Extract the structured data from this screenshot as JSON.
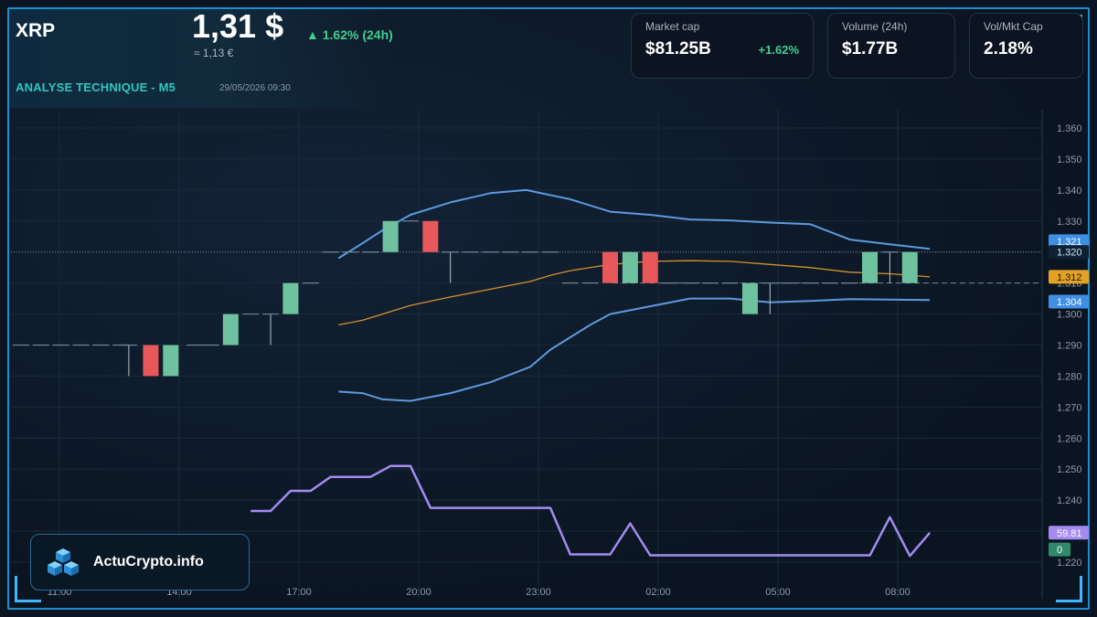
{
  "header": {
    "ticker": "XRP",
    "price": "1,31 $",
    "change": "▲ 1.62% (24h)",
    "price_eur": "≈ 1,13 €",
    "section_title": "ANALYSE TECHNIQUE - M5",
    "timestamp": "29/05/2026 09:30"
  },
  "stats": {
    "market_cap": {
      "label": "Market cap",
      "value": "$81.25B",
      "change": "+1.62%"
    },
    "volume": {
      "label": "Volume (24h)",
      "value": "$1.77B"
    },
    "vol_mkt_cap": {
      "label": "Vol/Mkt Cap",
      "value": "2.18%"
    }
  },
  "brand": {
    "name": "ActuCrypto.info"
  },
  "colors": {
    "up": "#6fc2a0",
    "down": "#e8575a",
    "band": "#5b9ae0",
    "ma": "#d4922a",
    "rsi": "#a38bf0",
    "accent": "#1c8fcf",
    "teal": "#2ec7c2"
  },
  "chart_data": {
    "type": "candlestick",
    "x_ticks": [
      "11:00",
      "14:00",
      "17:00",
      "20:00",
      "23:00",
      "02:00",
      "05:00",
      "08:00"
    ],
    "y_ticks": [
      "1.220",
      "1.230",
      "1.240",
      "1.250",
      "1.260",
      "1.270",
      "1.280",
      "1.290",
      "1.300",
      "1.310",
      "1.320",
      "1.330",
      "1.340",
      "1.350",
      "1.360"
    ],
    "ylim": [
      1.216,
      1.364
    ],
    "candles": [
      {
        "t": 0.25,
        "o": 1.29,
        "h": 1.29,
        "l": 1.29,
        "c": 1.29
      },
      {
        "t": 0.75,
        "o": 1.29,
        "h": 1.29,
        "l": 1.29,
        "c": 1.29
      },
      {
        "t": 1.25,
        "o": 1.29,
        "h": 1.29,
        "l": 1.29,
        "c": 1.29
      },
      {
        "t": 1.75,
        "o": 1.29,
        "h": 1.29,
        "l": 1.29,
        "c": 1.29
      },
      {
        "t": 2.25,
        "o": 1.29,
        "h": 1.29,
        "l": 1.29,
        "c": 1.29
      },
      {
        "t": 2.75,
        "o": 1.29,
        "h": 1.29,
        "l": 1.29,
        "c": 1.29
      },
      {
        "t": 2.95,
        "o": 1.29,
        "h": 1.29,
        "l": 1.28,
        "c": 1.29
      },
      {
        "t": 3.5,
        "o": 1.29,
        "h": 1.29,
        "l": 1.28,
        "c": 1.28
      },
      {
        "t": 4.0,
        "o": 1.28,
        "h": 1.29,
        "l": 1.28,
        "c": 1.29
      },
      {
        "t": 4.6,
        "o": 1.29,
        "h": 1.29,
        "l": 1.29,
        "c": 1.29
      },
      {
        "t": 5.0,
        "o": 1.29,
        "h": 1.29,
        "l": 1.29,
        "c": 1.29
      },
      {
        "t": 5.5,
        "o": 1.29,
        "h": 1.3,
        "l": 1.29,
        "c": 1.3
      },
      {
        "t": 6.0,
        "o": 1.3,
        "h": 1.3,
        "l": 1.3,
        "c": 1.3
      },
      {
        "t": 6.5,
        "o": 1.3,
        "h": 1.3,
        "l": 1.29,
        "c": 1.3
      },
      {
        "t": 7.0,
        "o": 1.3,
        "h": 1.31,
        "l": 1.3,
        "c": 1.31
      },
      {
        "t": 7.5,
        "o": 1.31,
        "h": 1.31,
        "l": 1.31,
        "c": 1.31
      },
      {
        "t": 8.0,
        "o": 1.32,
        "h": 1.32,
        "l": 1.32,
        "c": 1.32
      },
      {
        "t": 8.5,
        "o": 1.32,
        "h": 1.32,
        "l": 1.32,
        "c": 1.32
      },
      {
        "t": 9.0,
        "o": 1.32,
        "h": 1.32,
        "l": 1.32,
        "c": 1.32
      },
      {
        "t": 9.5,
        "o": 1.32,
        "h": 1.33,
        "l": 1.32,
        "c": 1.33
      },
      {
        "t": 10.0,
        "o": 1.33,
        "h": 1.33,
        "l": 1.33,
        "c": 1.33
      },
      {
        "t": 10.5,
        "o": 1.33,
        "h": 1.33,
        "l": 1.32,
        "c": 1.32
      },
      {
        "t": 11.0,
        "o": 1.32,
        "h": 1.32,
        "l": 1.31,
        "c": 1.32
      },
      {
        "t": 11.5,
        "o": 1.32,
        "h": 1.32,
        "l": 1.32,
        "c": 1.32
      },
      {
        "t": 12.0,
        "o": 1.32,
        "h": 1.32,
        "l": 1.32,
        "c": 1.32
      },
      {
        "t": 12.5,
        "o": 1.32,
        "h": 1.32,
        "l": 1.32,
        "c": 1.32
      },
      {
        "t": 13.0,
        "o": 1.32,
        "h": 1.32,
        "l": 1.32,
        "c": 1.32
      },
      {
        "t": 13.5,
        "o": 1.32,
        "h": 1.32,
        "l": 1.32,
        "c": 1.32
      },
      {
        "t": 14.0,
        "o": 1.31,
        "h": 1.31,
        "l": 1.31,
        "c": 1.31
      },
      {
        "t": 14.5,
        "o": 1.31,
        "h": 1.31,
        "l": 1.31,
        "c": 1.31
      },
      {
        "t": 15.0,
        "o": 1.32,
        "h": 1.32,
        "l": 1.31,
        "c": 1.31
      },
      {
        "t": 15.5,
        "o": 1.31,
        "h": 1.32,
        "l": 1.31,
        "c": 1.32
      },
      {
        "t": 16.0,
        "o": 1.32,
        "h": 1.32,
        "l": 1.31,
        "c": 1.31
      },
      {
        "t": 16.5,
        "o": 1.31,
        "h": 1.31,
        "l": 1.31,
        "c": 1.31
      },
      {
        "t": 17.0,
        "o": 1.31,
        "h": 1.31,
        "l": 1.31,
        "c": 1.31
      },
      {
        "t": 17.5,
        "o": 1.31,
        "h": 1.31,
        "l": 1.31,
        "c": 1.31
      },
      {
        "t": 18.0,
        "o": 1.31,
        "h": 1.31,
        "l": 1.31,
        "c": 1.31
      },
      {
        "t": 18.5,
        "o": 1.3,
        "h": 1.31,
        "l": 1.3,
        "c": 1.31
      },
      {
        "t": 19.0,
        "o": 1.31,
        "h": 1.31,
        "l": 1.3,
        "c": 1.31
      },
      {
        "t": 19.5,
        "o": 1.31,
        "h": 1.31,
        "l": 1.31,
        "c": 1.31
      },
      {
        "t": 20.0,
        "o": 1.31,
        "h": 1.31,
        "l": 1.31,
        "c": 1.31
      },
      {
        "t": 20.5,
        "o": 1.31,
        "h": 1.31,
        "l": 1.31,
        "c": 1.31
      },
      {
        "t": 21.0,
        "o": 1.31,
        "h": 1.31,
        "l": 1.31,
        "c": 1.31
      },
      {
        "t": 21.5,
        "o": 1.31,
        "h": 1.32,
        "l": 1.31,
        "c": 1.32
      },
      {
        "t": 22.0,
        "o": 1.32,
        "h": 1.32,
        "l": 1.31,
        "c": 1.32
      },
      {
        "t": 22.5,
        "o": 1.31,
        "h": 1.32,
        "l": 1.31,
        "c": 1.32
      }
    ],
    "bollinger_upper": [
      {
        "t": 8.2,
        "v": 1.318
      },
      {
        "t": 8.7,
        "v": 1.322
      },
      {
        "t": 9.3,
        "v": 1.327
      },
      {
        "t": 10.0,
        "v": 1.332
      },
      {
        "t": 11.0,
        "v": 1.336
      },
      {
        "t": 12.0,
        "v": 1.339
      },
      {
        "t": 12.9,
        "v": 1.34
      },
      {
        "t": 14.0,
        "v": 1.337
      },
      {
        "t": 15.0,
        "v": 1.333
      },
      {
        "t": 16.0,
        "v": 1.332
      },
      {
        "t": 17.0,
        "v": 1.3305
      },
      {
        "t": 18.0,
        "v": 1.3302
      },
      {
        "t": 19.0,
        "v": 1.3295
      },
      {
        "t": 20.0,
        "v": 1.329
      },
      {
        "t": 21.0,
        "v": 1.324
      },
      {
        "t": 22.0,
        "v": 1.3225
      },
      {
        "t": 23.0,
        "v": 1.321
      }
    ],
    "bollinger_lower": [
      {
        "t": 8.2,
        "v": 1.275
      },
      {
        "t": 8.8,
        "v": 1.2745
      },
      {
        "t": 9.3,
        "v": 1.2725
      },
      {
        "t": 10.0,
        "v": 1.272
      },
      {
        "t": 11.0,
        "v": 1.2745
      },
      {
        "t": 12.0,
        "v": 1.278
      },
      {
        "t": 13.0,
        "v": 1.283
      },
      {
        "t": 13.5,
        "v": 1.2885
      },
      {
        "t": 14.0,
        "v": 1.2925
      },
      {
        "t": 14.5,
        "v": 1.2965
      },
      {
        "t": 15.0,
        "v": 1.3
      },
      {
        "t": 16.0,
        "v": 1.3025
      },
      {
        "t": 17.0,
        "v": 1.305
      },
      {
        "t": 18.0,
        "v": 1.305
      },
      {
        "t": 19.0,
        "v": 1.3038
      },
      {
        "t": 20.0,
        "v": 1.3042
      },
      {
        "t": 21.0,
        "v": 1.3048
      },
      {
        "t": 23.0,
        "v": 1.3045
      }
    ],
    "moving_average": [
      {
        "t": 8.2,
        "v": 1.2965
      },
      {
        "t": 8.8,
        "v": 1.298
      },
      {
        "t": 9.3,
        "v": 1.3
      },
      {
        "t": 10.0,
        "v": 1.3028
      },
      {
        "t": 11.0,
        "v": 1.3055
      },
      {
        "t": 12.0,
        "v": 1.308
      },
      {
        "t": 13.0,
        "v": 1.3105
      },
      {
        "t": 13.5,
        "v": 1.3125
      },
      {
        "t": 14.0,
        "v": 1.314
      },
      {
        "t": 15.0,
        "v": 1.316
      },
      {
        "t": 16.0,
        "v": 1.317
      },
      {
        "t": 17.0,
        "v": 1.3172
      },
      {
        "t": 18.0,
        "v": 1.317
      },
      {
        "t": 19.0,
        "v": 1.316
      },
      {
        "t": 20.0,
        "v": 1.315
      },
      {
        "t": 21.0,
        "v": 1.3135
      },
      {
        "t": 22.0,
        "v": 1.313
      },
      {
        "t": 23.0,
        "v": 1.312
      }
    ],
    "rsi": [
      {
        "t": 6.0,
        "v": 1.2365
      },
      {
        "t": 6.5,
        "v": 1.2365
      },
      {
        "t": 7.0,
        "v": 1.243
      },
      {
        "t": 7.5,
        "v": 1.243
      },
      {
        "t": 8.0,
        "v": 1.2475
      },
      {
        "t": 8.5,
        "v": 1.2475
      },
      {
        "t": 9.0,
        "v": 1.2475
      },
      {
        "t": 9.5,
        "v": 1.251
      },
      {
        "t": 10.0,
        "v": 1.251
      },
      {
        "t": 10.5,
        "v": 1.2375
      },
      {
        "t": 11.0,
        "v": 1.2375
      },
      {
        "t": 12.0,
        "v": 1.2375
      },
      {
        "t": 13.0,
        "v": 1.2375
      },
      {
        "t": 13.5,
        "v": 1.2375
      },
      {
        "t": 14.0,
        "v": 1.2225
      },
      {
        "t": 14.5,
        "v": 1.2225
      },
      {
        "t": 15.0,
        "v": 1.2225
      },
      {
        "t": 15.5,
        "v": 1.2325
      },
      {
        "t": 16.0,
        "v": 1.2222
      },
      {
        "t": 17.0,
        "v": 1.2222
      },
      {
        "t": 18.0,
        "v": 1.2222
      },
      {
        "t": 19.0,
        "v": 1.2222
      },
      {
        "t": 20.0,
        "v": 1.2222
      },
      {
        "t": 21.0,
        "v": 1.2222
      },
      {
        "t": 21.5,
        "v": 1.2222
      },
      {
        "t": 22.0,
        "v": 1.2345
      },
      {
        "t": 22.5,
        "v": 1.222
      },
      {
        "t": 23.0,
        "v": 1.2295
      }
    ],
    "current_price_line": 1.32,
    "ma_value_line": 1.31,
    "price_tags": [
      {
        "label": "1.321",
        "v": 1.3235,
        "bg": "#3f8fe6",
        "fg": "#ffffff"
      },
      {
        "label": "1.320",
        "v": 1.32,
        "bg": "#0e2236",
        "fg": "#d7e2ec"
      },
      {
        "label": "1.312",
        "v": 1.312,
        "bg": "#e4a126",
        "fg": "#1a1a1a"
      },
      {
        "label": "1.304",
        "v": 1.304,
        "bg": "#3f8fe6",
        "fg": "#ffffff"
      },
      {
        "label": "59.81",
        "v": 1.2295,
        "bg": "#a38bf0",
        "fg": "#ffffff"
      },
      {
        "label": "0",
        "v": 1.2241,
        "bg": "#2f8a6a",
        "fg": "#ffffff"
      }
    ]
  }
}
